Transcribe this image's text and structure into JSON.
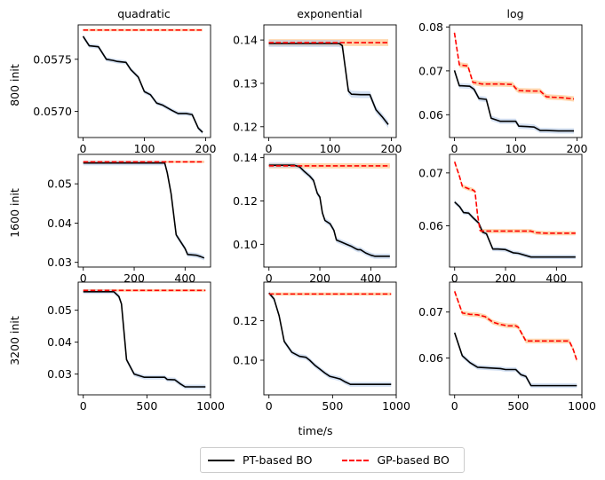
{
  "chart_data": {
    "type": "line",
    "layout": "3x3 grid of subplots",
    "column_titles": [
      "quadratic",
      "exponential",
      "log"
    ],
    "row_labels": [
      "800 init",
      "1600 init",
      "3200 init"
    ],
    "xlabel": "time/s",
    "legend": {
      "placement": "bottom-center",
      "entries": [
        {
          "name": "PT-based BO",
          "color": "#000000",
          "style": "solid"
        },
        {
          "name": "GP-based BO",
          "color": "#ff0000",
          "style": "dashed"
        }
      ]
    },
    "colors": {
      "pt_band": "#aec7e8",
      "gp_band": "#ffbb78"
    },
    "panels": [
      {
        "row": 0,
        "col": 0,
        "xlim": [
          -8,
          208
        ],
        "ylim": [
          0.05675,
          0.05783
        ],
        "xticks": [
          0,
          100,
          200
        ],
        "xtick_labels": [
          "0",
          "100",
          "200"
        ],
        "yticks": [
          0.057,
          0.0575
        ],
        "ytick_labels": [
          "0.0570",
          "0.0575"
        ],
        "series": [
          {
            "name": "PT-based BO",
            "band": 2e-05,
            "x": [
              0,
              10,
              25,
              38,
              48,
              55,
              70,
              78,
              90,
              100,
              110,
              120,
              130,
              145,
              155,
              168,
              178,
              188,
              195
            ],
            "y": [
              0.05772,
              0.05763,
              0.05762,
              0.0575,
              0.05749,
              0.05748,
              0.05747,
              0.0574,
              0.05733,
              0.05719,
              0.05716,
              0.05708,
              0.05706,
              0.05701,
              0.05698,
              0.05698,
              0.05697,
              0.05684,
              0.0568
            ]
          },
          {
            "name": "GP-based BO",
            "band": 1.2e-05,
            "x": [
              0,
              195
            ],
            "y": [
              0.05778,
              0.05778
            ]
          }
        ]
      },
      {
        "row": 0,
        "col": 1,
        "xlim": [
          -8,
          208
        ],
        "ylim": [
          0.1175,
          0.1435
        ],
        "xticks": [
          0,
          100,
          200
        ],
        "xtick_labels": [
          "0",
          "100",
          "200"
        ],
        "yticks": [
          0.12,
          0.13,
          0.14
        ],
        "ytick_labels": [
          "0.12",
          "0.13",
          "0.14"
        ],
        "series": [
          {
            "name": "PT-based BO",
            "band": 0.0008,
            "x": [
              0,
              115,
              120,
              130,
              135,
              150,
              165,
              175,
              185,
              195
            ],
            "y": [
              0.1392,
              0.1392,
              0.1387,
              0.1282,
              0.1275,
              0.1274,
              0.1274,
              0.1239,
              0.1223,
              0.1205
            ]
          },
          {
            "name": "GP-based BO",
            "band": 0.0008,
            "x": [
              0,
              195
            ],
            "y": [
              0.1394,
              0.1394
            ]
          }
        ]
      },
      {
        "row": 0,
        "col": 2,
        "xlim": [
          -8,
          208
        ],
        "ylim": [
          0.0548,
          0.0805
        ],
        "xticks": [
          0,
          100,
          200
        ],
        "xtick_labels": [
          "0",
          "100",
          "200"
        ],
        "yticks": [
          0.06,
          0.07,
          0.08
        ],
        "ytick_labels": [
          "0.06",
          "0.07",
          "0.08"
        ],
        "series": [
          {
            "name": "PT-based BO",
            "band": 0.0006,
            "x": [
              0,
              8,
              12,
              25,
              32,
              40,
              52,
              60,
              75,
              100,
              105,
              120,
              130,
              140,
              150,
              170,
              195
            ],
            "y": [
              0.0701,
              0.0666,
              0.0666,
              0.0665,
              0.0658,
              0.0637,
              0.0635,
              0.0592,
              0.0585,
              0.0585,
              0.0574,
              0.0573,
              0.0572,
              0.0564,
              0.0564,
              0.0563,
              0.0563
            ]
          },
          {
            "name": "GP-based BO",
            "band": 0.0006,
            "x": [
              0,
              8,
              12,
              22,
              30,
              45,
              60,
              75,
              95,
              100,
              105,
              125,
              140,
              150,
              160,
              175,
              195
            ],
            "y": [
              0.0787,
              0.0714,
              0.0713,
              0.0711,
              0.0674,
              0.067,
              0.067,
              0.067,
              0.0669,
              0.066,
              0.0655,
              0.0654,
              0.0654,
              0.0641,
              0.064,
              0.0639,
              0.0636
            ]
          }
        ]
      },
      {
        "row": 1,
        "col": 0,
        "xlim": [
          -20,
          500
        ],
        "ylim": [
          0.0288,
          0.0575
        ],
        "xticks": [
          0,
          200,
          400
        ],
        "xtick_labels": [
          "0",
          "200",
          "400"
        ],
        "yticks": [
          0.03,
          0.04,
          0.05
        ],
        "ytick_labels": [
          "0.03",
          "0.04",
          "0.05"
        ],
        "series": [
          {
            "name": "PT-based BO",
            "band": 0.0006,
            "x": [
              0,
              320,
              330,
              345,
              365,
              385,
              400,
              410,
              430,
              445,
              460,
              475
            ],
            "y": [
              0.0553,
              0.0553,
              0.0528,
              0.0475,
              0.037,
              0.035,
              0.0335,
              0.032,
              0.0319,
              0.0318,
              0.0315,
              0.0311
            ]
          },
          {
            "name": "GP-based BO",
            "band": 0.0003,
            "x": [
              0,
              475
            ],
            "y": [
              0.0556,
              0.0556
            ]
          }
        ]
      },
      {
        "row": 1,
        "col": 1,
        "xlim": [
          -20,
          500
        ],
        "ylim": [
          0.0895,
          0.1415
        ],
        "xticks": [
          0,
          200,
          400
        ],
        "xtick_labels": [
          "0",
          "200",
          "400"
        ],
        "yticks": [
          0.1,
          0.12,
          0.14
        ],
        "ytick_labels": [
          "0.10",
          "0.12",
          "0.14"
        ],
        "series": [
          {
            "name": "PT-based BO",
            "band": 0.0012,
            "x": [
              0,
              100,
              120,
              140,
              160,
              175,
              190,
              200,
              210,
              220,
              240,
              255,
              265,
              285,
              305,
              325,
              340,
              350,
              360,
              380,
              400,
              415,
              475
            ],
            "y": [
              0.1365,
              0.1365,
              0.1358,
              0.1335,
              0.1315,
              0.1295,
              0.1235,
              0.1218,
              0.1145,
              0.111,
              0.1095,
              0.1065,
              0.102,
              0.101,
              0.1,
              0.099,
              0.098,
              0.0975,
              0.0975,
              0.096,
              0.095,
              0.0945,
              0.0945
            ]
          },
          {
            "name": "GP-based BO",
            "band": 0.0012,
            "x": [
              0,
              475
            ],
            "y": [
              0.1362,
              0.1362
            ]
          }
        ]
      },
      {
        "row": 1,
        "col": 2,
        "xlim": [
          -20,
          500
        ],
        "ylim": [
          0.0522,
          0.0735
        ],
        "xticks": [
          0,
          200,
          400
        ],
        "xtick_labels": [
          "0",
          "200",
          "400"
        ],
        "yticks": [
          0.06,
          0.07
        ],
        "ytick_labels": [
          "0.06",
          "0.07"
        ],
        "series": [
          {
            "name": "PT-based BO",
            "band": 0.0004,
            "x": [
              0,
              20,
              35,
              55,
              75,
              95,
              110,
              125,
              150,
              170,
              200,
              230,
              250,
              300,
              475
            ],
            "y": [
              0.0645,
              0.0636,
              0.0625,
              0.0624,
              0.0614,
              0.0605,
              0.0588,
              0.0585,
              0.0556,
              0.0556,
              0.0555,
              0.0549,
              0.0548,
              0.0541,
              0.0541
            ]
          },
          {
            "name": "GP-based BO",
            "band": 0.0004,
            "x": [
              0,
              20,
              30,
              40,
              55,
              70,
              80,
              90,
              100,
              110,
              120,
              150,
              300,
              320,
              360,
              400,
              475
            ],
            "y": [
              0.0721,
              0.0692,
              0.0675,
              0.0673,
              0.067,
              0.0668,
              0.0665,
              0.0621,
              0.0591,
              0.059,
              0.059,
              0.059,
              0.059,
              0.0587,
              0.0586,
              0.0586,
              0.0586
            ]
          }
        ]
      },
      {
        "row": 2,
        "col": 0,
        "xlim": [
          -40,
          1000
        ],
        "ylim": [
          0.0235,
          0.0588
        ],
        "xticks": [
          0,
          500,
          1000
        ],
        "xtick_labels": [
          "0",
          "500",
          "1000"
        ],
        "yticks": [
          0.03,
          0.04,
          0.05
        ],
        "ytick_labels": [
          "0.03",
          "0.04",
          "0.05"
        ],
        "series": [
          {
            "name": "PT-based BO",
            "band": 0.0007,
            "x": [
              0,
              240,
              280,
              300,
              340,
              380,
              400,
              480,
              520,
              640,
              660,
              720,
              760,
              800,
              960
            ],
            "y": [
              0.0558,
              0.0558,
              0.0543,
              0.052,
              0.0345,
              0.0315,
              0.03,
              0.029,
              0.029,
              0.029,
              0.0283,
              0.0282,
              0.027,
              0.026,
              0.026
            ]
          },
          {
            "name": "GP-based BO",
            "band": 0.0004,
            "x": [
              0,
              960
            ],
            "y": [
              0.0562,
              0.0562
            ]
          }
        ]
      },
      {
        "row": 2,
        "col": 1,
        "xlim": [
          -40,
          1000
        ],
        "ylim": [
          0.0825,
          0.1395
        ],
        "xticks": [
          0,
          500,
          1000
        ],
        "xtick_labels": [
          "0",
          "500",
          "1000"
        ],
        "yticks": [
          0.1,
          0.12
        ],
        "ytick_labels": [
          "0.10",
          "0.12"
        ],
        "series": [
          {
            "name": "PT-based BO",
            "band": 0.0012,
            "x": [
              0,
              40,
              80,
              120,
              180,
              240,
              290,
              320,
              360,
              400,
              440,
              480,
              520,
              560,
              600,
              640,
              960
            ],
            "y": [
              0.134,
              0.131,
              0.1225,
              0.1095,
              0.104,
              0.102,
              0.1015,
              0.1,
              0.0975,
              0.0955,
              0.0935,
              0.0918,
              0.0912,
              0.0905,
              0.089,
              0.0878,
              0.0878
            ]
          },
          {
            "name": "GP-based BO",
            "band": 0.0008,
            "x": [
              0,
              960
            ],
            "y": [
              0.1335,
              0.1335
            ]
          }
        ]
      },
      {
        "row": 2,
        "col": 2,
        "xlim": [
          -40,
          1000
        ],
        "ylim": [
          0.052,
          0.0765
        ],
        "xticks": [
          0,
          500,
          1000
        ],
        "xtick_labels": [
          "0",
          "500",
          "1000"
        ],
        "yticks": [
          0.06,
          0.07
        ],
        "ytick_labels": [
          "0.06",
          "0.07"
        ],
        "series": [
          {
            "name": "PT-based BO",
            "band": 0.0005,
            "x": [
              0,
              60,
              120,
              180,
              240,
              300,
              360,
              400,
              440,
              480,
              520,
              560,
              600,
              960
            ],
            "y": [
              0.0655,
              0.0605,
              0.059,
              0.058,
              0.0579,
              0.0578,
              0.0577,
              0.0575,
              0.0575,
              0.0575,
              0.0564,
              0.056,
              0.054,
              0.054
            ]
          },
          {
            "name": "GP-based BO",
            "band": 0.0005,
            "x": [
              0,
              60,
              120,
              180,
              240,
              300,
              360,
              420,
              480,
              500,
              560,
              900,
              930,
              960
            ],
            "y": [
              0.0745,
              0.0698,
              0.0695,
              0.0694,
              0.069,
              0.0678,
              0.0673,
              0.067,
              0.067,
              0.0667,
              0.0637,
              0.0637,
              0.062,
              0.0595
            ]
          }
        ]
      }
    ]
  }
}
